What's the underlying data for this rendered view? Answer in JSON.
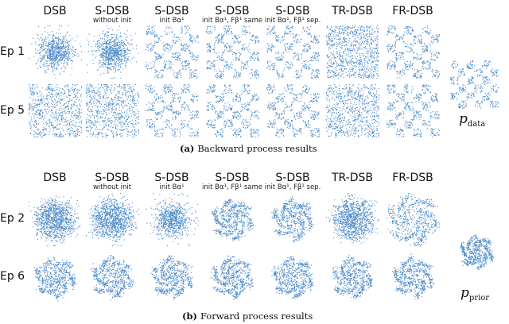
{
  "backward": {
    "caption_tag": "(a)",
    "caption_text": "Backward process results",
    "columns": [
      {
        "title": "DSB",
        "sub": ""
      },
      {
        "title": "S-DSB",
        "sub": "without init"
      },
      {
        "title": "S-DSB",
        "sub": "init Bα¹"
      },
      {
        "title": "S-DSB",
        "sub": "init Bα¹, Fβ¹ same"
      },
      {
        "title": "S-DSB",
        "sub": "init Bα¹, Fβ¹ sep."
      },
      {
        "title": "TR-DSB",
        "sub": ""
      },
      {
        "title": "FR-DSB",
        "sub": ""
      }
    ],
    "rows": [
      {
        "label": "Ep 1",
        "patterns": [
          "blob",
          "blob",
          "checker",
          "checker",
          "checker",
          "uniform",
          "checker"
        ]
      },
      {
        "label": "Ep 5",
        "patterns": [
          "checker-faint",
          "checker-faint",
          "checker",
          "checker",
          "checker",
          "checker-faint",
          "checker"
        ]
      }
    ],
    "reference": {
      "symbol": "p",
      "subscript": "data",
      "pattern": "checker"
    }
  },
  "forward": {
    "caption_tag": "(b)",
    "caption_text": "Forward process results",
    "columns": [
      {
        "title": "DSB",
        "sub": ""
      },
      {
        "title": "S-DSB",
        "sub": "without init"
      },
      {
        "title": "S-DSB",
        "sub": "init Bα¹"
      },
      {
        "title": "S-DSB",
        "sub": "init Bα¹, Fβ¹ same"
      },
      {
        "title": "S-DSB",
        "sub": "init Bα¹, Fβ¹ sep."
      },
      {
        "title": "TR-DSB",
        "sub": ""
      },
      {
        "title": "FR-DSB",
        "sub": ""
      }
    ],
    "rows": [
      {
        "label": "Ep 2",
        "patterns": [
          "spiral-blob",
          "spiral-blob",
          "blob",
          "spiral",
          "spiral",
          "spiral-blob",
          "spiral-big"
        ]
      },
      {
        "label": "Ep 6",
        "patterns": [
          "spiral",
          "spiral",
          "spiral",
          "spiral",
          "spiral",
          "spiral",
          "spiral"
        ]
      }
    ],
    "reference": {
      "symbol": "p",
      "subscript": "prior",
      "pattern": "spiral"
    }
  },
  "colors": {
    "points": "#3b7fc4",
    "text": "#111111"
  }
}
